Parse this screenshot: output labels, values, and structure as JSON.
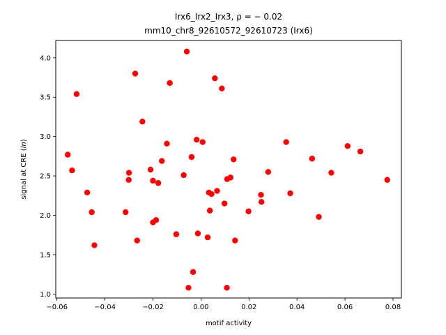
{
  "chart_data": {
    "type": "scatter",
    "title_line1": "Irx6_Irx2_Irx3, ρ = − 0.02",
    "title_line2": "mm10_chr8_92610572_92610723 (Irx6)",
    "xlabel": "motif activity",
    "ylabel_prefix": "signal at CRE (",
    "ylabel_italic": "ln",
    "ylabel_suffix": ")",
    "xlim": [
      -0.0605,
      0.0835
    ],
    "ylim": [
      0.95,
      4.22
    ],
    "x_ticks": [
      -0.06,
      -0.04,
      -0.02,
      0.0,
      0.02,
      0.04,
      0.06,
      0.08
    ],
    "x_tick_labels": [
      "−0.06",
      "−0.04",
      "−0.02",
      "0.00",
      "0.02",
      "0.04",
      "0.06",
      "0.08"
    ],
    "y_ticks": [
      1.0,
      1.5,
      2.0,
      2.5,
      3.0,
      3.5,
      4.0
    ],
    "y_tick_labels": [
      "1.0",
      "1.5",
      "2.0",
      "2.5",
      "3.0",
      "3.5",
      "4.0"
    ],
    "point_color": "#ff0000",
    "grid": false,
    "legend": "none",
    "points": [
      [
        -0.0555,
        2.77
      ],
      [
        -0.0537,
        2.57
      ],
      [
        -0.0518,
        3.54
      ],
      [
        -0.0474,
        2.29
      ],
      [
        -0.0455,
        2.04
      ],
      [
        -0.0444,
        1.62
      ],
      [
        -0.0314,
        2.04
      ],
      [
        -0.03,
        2.54
      ],
      [
        -0.0301,
        2.45
      ],
      [
        -0.0274,
        3.8
      ],
      [
        -0.0266,
        1.68
      ],
      [
        -0.0244,
        3.19
      ],
      [
        -0.021,
        2.58
      ],
      [
        -0.02,
        2.44
      ],
      [
        -0.02,
        1.91
      ],
      [
        -0.0187,
        1.94
      ],
      [
        -0.0178,
        2.41
      ],
      [
        -0.0163,
        2.69
      ],
      [
        -0.0142,
        2.91
      ],
      [
        -0.013,
        3.68
      ],
      [
        -0.0103,
        1.76
      ],
      [
        -0.0072,
        2.51
      ],
      [
        -0.0059,
        4.08
      ],
      [
        -0.0052,
        1.08
      ],
      [
        -0.0039,
        2.74
      ],
      [
        -0.0033,
        1.28
      ],
      [
        -0.0018,
        2.96
      ],
      [
        -0.0013,
        1.77
      ],
      [
        0.0007,
        2.93
      ],
      [
        0.0028,
        1.72
      ],
      [
        0.0033,
        2.29
      ],
      [
        0.0037,
        2.06
      ],
      [
        0.0044,
        2.27
      ],
      [
        0.0058,
        3.74
      ],
      [
        0.0067,
        2.31
      ],
      [
        0.0087,
        3.61
      ],
      [
        0.0098,
        2.15
      ],
      [
        0.0108,
        1.08
      ],
      [
        0.0109,
        2.46
      ],
      [
        0.0123,
        2.48
      ],
      [
        0.0136,
        2.71
      ],
      [
        0.0142,
        1.68
      ],
      [
        0.0198,
        2.05
      ],
      [
        0.025,
        2.26
      ],
      [
        0.0252,
        2.17
      ],
      [
        0.028,
        2.55
      ],
      [
        0.0355,
        2.93
      ],
      [
        0.0372,
        2.28
      ],
      [
        0.0463,
        2.72
      ],
      [
        0.0491,
        1.98
      ],
      [
        0.0543,
        2.54
      ],
      [
        0.0611,
        2.88
      ],
      [
        0.0664,
        2.81
      ],
      [
        0.0776,
        2.45
      ]
    ]
  }
}
